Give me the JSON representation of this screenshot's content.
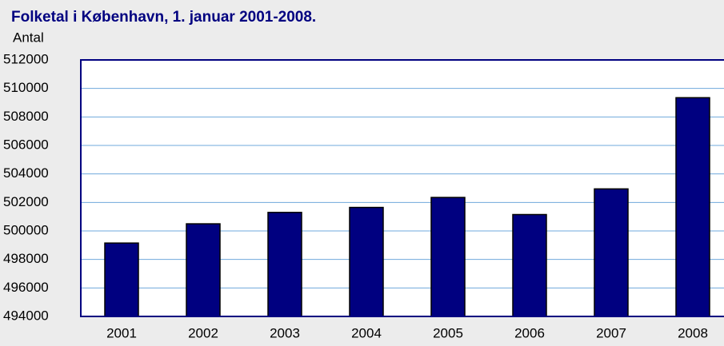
{
  "chart_data": {
    "type": "bar",
    "title": "Folketal i København, 1. januar 2001-2008.",
    "y_label": "Antal",
    "categories": [
      "2001",
      "2002",
      "2003",
      "2004",
      "2005",
      "2006",
      "2007",
      "2008"
    ],
    "values": [
      499150,
      500500,
      501300,
      501650,
      502350,
      501150,
      502950,
      509350
    ],
    "color": "#000080",
    "ylim": [
      494000,
      512000
    ],
    "yticks": [
      494000,
      496000,
      498000,
      500000,
      502000,
      504000,
      506000,
      508000,
      510000,
      512000
    ],
    "grid": true
  }
}
